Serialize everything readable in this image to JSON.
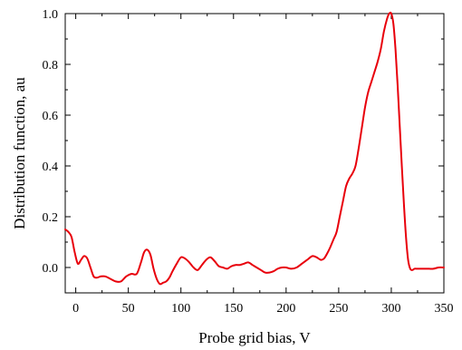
{
  "chart_data": {
    "type": "line",
    "title": "",
    "xlabel": "Probe grid bias, V",
    "ylabel": "Distribution function, au",
    "xlim": [
      -10,
      350
    ],
    "ylim": [
      -0.1,
      1.0
    ],
    "xticks": [
      0,
      50,
      100,
      150,
      200,
      250,
      300,
      350
    ],
    "xtick_labels": [
      "0",
      "50",
      "100",
      "150",
      "200",
      "250",
      "300",
      "350"
    ],
    "yticks": [
      0.0,
      0.2,
      0.4,
      0.6,
      0.8,
      1.0
    ],
    "ytick_labels": [
      "0.0",
      "0.2",
      "0.4",
      "0.6",
      "0.8",
      "1.0"
    ],
    "grid": false,
    "legend": "none",
    "series": [
      {
        "color": "#e8000b",
        "x": [
          -10,
          -7,
          -4,
          -1,
          2,
          5,
          8,
          11,
          14,
          17,
          20,
          24,
          28,
          33,
          38,
          43,
          48,
          53,
          58,
          62,
          65,
          68,
          71,
          74,
          77,
          80,
          83,
          86,
          89,
          92,
          96,
          100,
          104,
          108,
          112,
          116,
          120,
          124,
          128,
          132,
          136,
          140,
          144,
          148,
          152,
          156,
          160,
          164,
          168,
          172,
          176,
          180,
          184,
          188,
          192,
          196,
          200,
          205,
          210,
          215,
          220,
          225,
          229,
          233,
          236,
          239,
          242,
          245,
          248,
          251,
          254,
          257,
          260,
          263,
          266,
          269,
          272,
          275,
          278,
          281,
          284,
          287,
          290,
          293,
          296,
          298,
          300,
          302,
          304,
          306,
          308,
          310,
          312,
          314,
          316,
          318,
          320,
          322,
          324,
          326,
          328,
          332,
          336,
          340,
          345,
          350
        ],
        "y": [
          0.15,
          0.14,
          0.12,
          0.06,
          0.015,
          0.03,
          0.045,
          0.035,
          0.0,
          -0.035,
          -0.04,
          -0.035,
          -0.035,
          -0.045,
          -0.055,
          -0.055,
          -0.035,
          -0.025,
          -0.025,
          0.02,
          0.06,
          0.07,
          0.05,
          -0.005,
          -0.045,
          -0.065,
          -0.06,
          -0.055,
          -0.04,
          -0.015,
          0.015,
          0.04,
          0.035,
          0.02,
          0.0,
          -0.01,
          0.01,
          0.03,
          0.04,
          0.025,
          0.005,
          0.0,
          -0.005,
          0.005,
          0.01,
          0.01,
          0.015,
          0.02,
          0.01,
          0.0,
          -0.01,
          -0.02,
          -0.02,
          -0.015,
          -0.005,
          0.0,
          0.0,
          -0.005,
          0.0,
          0.015,
          0.03,
          0.045,
          0.04,
          0.03,
          0.035,
          0.055,
          0.08,
          0.11,
          0.14,
          0.2,
          0.26,
          0.32,
          0.35,
          0.37,
          0.4,
          0.47,
          0.55,
          0.63,
          0.69,
          0.73,
          0.77,
          0.81,
          0.86,
          0.93,
          0.98,
          1.0,
          1.0,
          0.96,
          0.86,
          0.72,
          0.56,
          0.4,
          0.25,
          0.12,
          0.03,
          -0.005,
          -0.01,
          -0.005,
          -0.005,
          -0.005,
          -0.005,
          -0.005,
          -0.005,
          -0.005,
          0.0,
          0.0
        ]
      }
    ]
  }
}
